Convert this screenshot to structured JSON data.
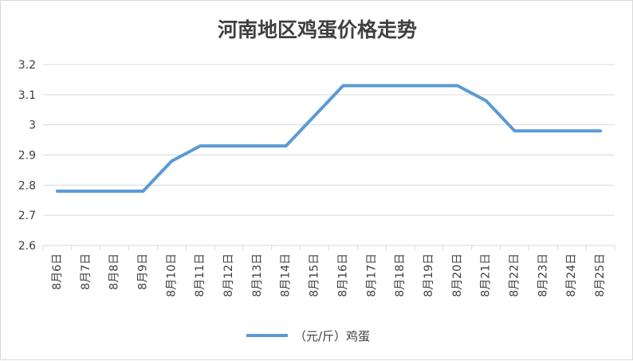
{
  "chart_data": {
    "type": "line",
    "title": "河南地区鸡蛋价格走势",
    "xlabel": "",
    "ylabel": "",
    "categories": [
      "8月6日",
      "8月7日",
      "8月8日",
      "8月9日",
      "8月10日",
      "8月11日",
      "8月12日",
      "8月13日",
      "8月14日",
      "8月15日",
      "8月16日",
      "8月17日",
      "8月18日",
      "8月19日",
      "8月20日",
      "8月21日",
      "8月22日",
      "8月23日",
      "8月24日",
      "8月25日"
    ],
    "series": [
      {
        "name": "（元/斤）鸡蛋",
        "color": "#5b9bd5",
        "values": [
          2.78,
          2.78,
          2.78,
          2.78,
          2.88,
          2.93,
          2.93,
          2.93,
          2.93,
          3.03,
          3.13,
          3.13,
          3.13,
          3.13,
          3.13,
          3.08,
          2.98,
          2.98,
          2.98,
          2.98
        ]
      }
    ],
    "ylim": [
      2.6,
      3.2
    ],
    "yticks": [
      2.6,
      2.7,
      2.8,
      2.9,
      3,
      3.1,
      3.2
    ],
    "ytick_labels": [
      "2.6",
      "2.7",
      "2.8",
      "2.9",
      "3",
      "3.1",
      "3.2"
    ],
    "grid": true,
    "legend_position": "bottom"
  }
}
